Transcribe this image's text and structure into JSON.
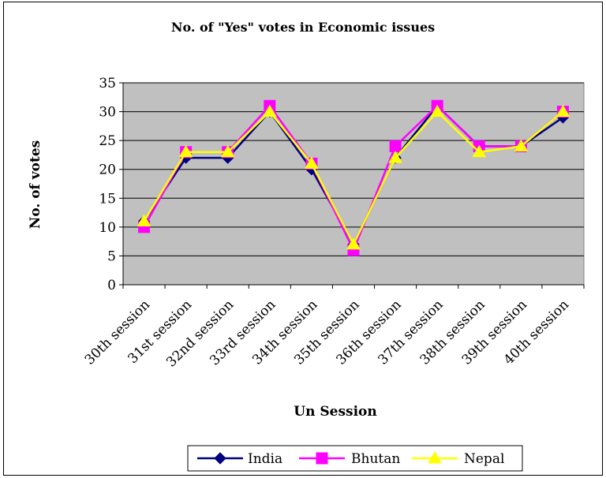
{
  "chart_data": {
    "type": "line",
    "title": "No. of \"Yes\" votes in Economic issues",
    "xlabel": "Un Session",
    "ylabel": "No. of votes",
    "ylim": [
      0,
      35
    ],
    "yticks": [
      0,
      5,
      10,
      15,
      20,
      25,
      30,
      35
    ],
    "grid": true,
    "legend_position": "bottom",
    "plot_background": "#c0c0c0",
    "categories": [
      "30th session",
      "31st session",
      "32nd session",
      "33rd session",
      "34th session",
      "35th session",
      "36th session",
      "37th session",
      "38th session",
      "39th session",
      "40th session"
    ],
    "series": [
      {
        "name": "India",
        "color": "#000080",
        "marker": "diamond",
        "values": [
          11,
          22,
          22,
          30,
          20,
          7,
          22,
          31,
          24,
          24,
          29
        ]
      },
      {
        "name": "Bhutan",
        "color": "#ff00ff",
        "marker": "square",
        "values": [
          10,
          23,
          23,
          31,
          21,
          6,
          24,
          31,
          24,
          24,
          30
        ]
      },
      {
        "name": "Nepal",
        "color": "#ffff00",
        "marker": "triangle",
        "values": [
          11,
          23,
          23,
          30,
          21,
          7,
          22,
          30,
          23,
          24,
          30
        ]
      }
    ]
  }
}
